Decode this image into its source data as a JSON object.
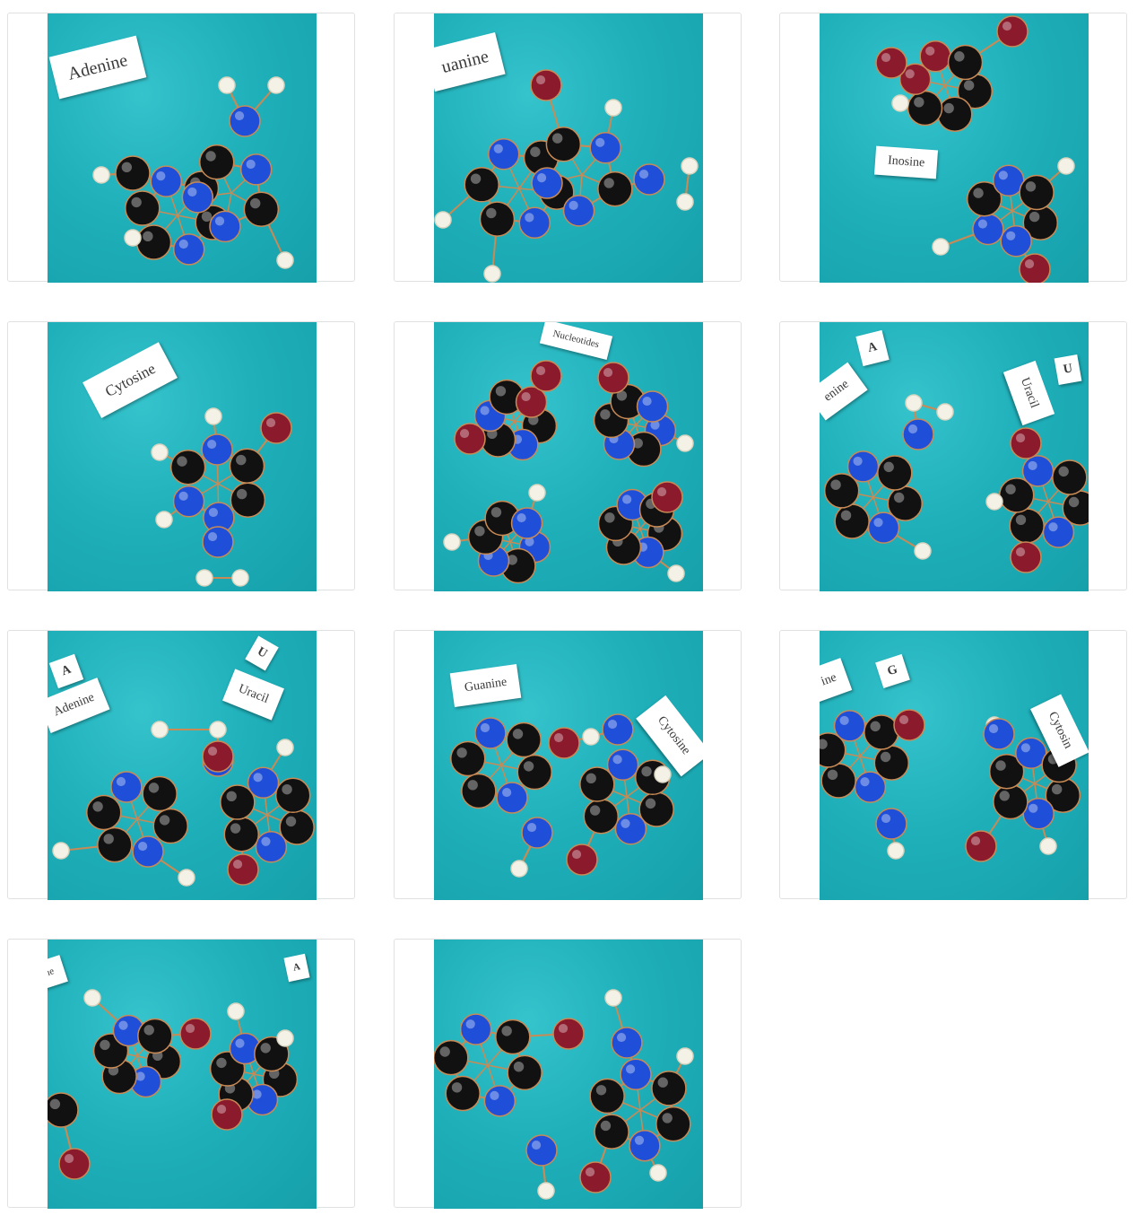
{
  "gallery": {
    "items": [
      {
        "name": "thumb-adenine",
        "labels": [
          "Adenine"
        ]
      },
      {
        "name": "thumb-guanine",
        "labels": [
          "uanine"
        ]
      },
      {
        "name": "thumb-inosine",
        "labels": [
          "Inosine"
        ]
      },
      {
        "name": "thumb-cytosine",
        "labels": [
          "Cytosine"
        ]
      },
      {
        "name": "thumb-nucleotides",
        "labels": [
          "Nucleotides"
        ]
      },
      {
        "name": "thumb-adenine-uracil-1",
        "labels": [
          "A",
          "enine",
          "Uracil",
          "U"
        ]
      },
      {
        "name": "thumb-adenine-uracil-2",
        "labels": [
          "A",
          "Adenine",
          "U",
          "Uracil"
        ]
      },
      {
        "name": "thumb-guanine-cytosine-1",
        "labels": [
          "Guanine",
          "Cytosine"
        ]
      },
      {
        "name": "thumb-guanine-cytosine-2",
        "labels": [
          "ine",
          "G",
          "Cytosin"
        ]
      },
      {
        "name": "thumb-pair-chain",
        "labels": [
          "ine",
          "A"
        ]
      },
      {
        "name": "thumb-pair-closeup",
        "labels": []
      }
    ]
  },
  "colors": {
    "background": "#1fb0ba",
    "carbon": "#111111",
    "nitrogen": "#1f4fd8",
    "oxygen": "#8b1a2c",
    "hydrogen": "#f4f2e6",
    "bond": "#c98a55"
  }
}
